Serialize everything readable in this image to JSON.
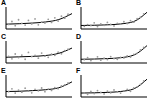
{
  "chart_data": [
    {
      "type": "scatter",
      "title": "A",
      "xlim": [
        0,
        100
      ],
      "ylim": [
        0,
        10
      ],
      "xticks": [
        0,
        25,
        50,
        75,
        100
      ],
      "yticks": [
        0,
        5,
        10
      ],
      "tick_labels": false,
      "grid": false,
      "series": [
        {
          "type": "scatter",
          "color": "#9a9a9a",
          "marker": "circle",
          "x": [
            4,
            9,
            14,
            19,
            24,
            29,
            34,
            39,
            44,
            49,
            54,
            59,
            64,
            69,
            74,
            79,
            84,
            89,
            94
          ],
          "values": [
            2.1,
            3.4,
            1.5,
            4.2,
            2.6,
            1.8,
            3.9,
            2.3,
            4.6,
            1.9,
            3.1,
            2.7,
            4.4,
            3.0,
            5.1,
            3.6,
            5.8,
            4.9,
            6.7
          ]
        },
        {
          "type": "line",
          "color": "#000000",
          "line_style": "solid",
          "x": [
            0,
            20,
            40,
            60,
            80,
            100
          ],
          "values": [
            2.2,
            2.4,
            2.7,
            3.2,
            4.3,
            7.0
          ]
        }
      ]
    },
    {
      "type": "scatter",
      "title": "B",
      "xlim": [
        0,
        100
      ],
      "ylim": [
        0,
        10
      ],
      "xticks": [
        0,
        25,
        50,
        75,
        100
      ],
      "yticks": [
        0,
        5,
        10
      ],
      "tick_labels": false,
      "grid": false,
      "series": [
        {
          "type": "scatter",
          "color": "#9a9a9a",
          "marker": "circle",
          "x": [
            5,
            10,
            15,
            20,
            25,
            30,
            35,
            40,
            45,
            50,
            55,
            60,
            65,
            70,
            75,
            80,
            85,
            90,
            95
          ],
          "values": [
            1.2,
            2.0,
            1.6,
            2.8,
            1.1,
            2.3,
            1.7,
            3.0,
            2.1,
            1.4,
            2.6,
            2.2,
            3.3,
            2.5,
            3.8,
            3.1,
            4.7,
            5.4,
            6.9
          ]
        },
        {
          "type": "line",
          "color": "#000000",
          "line_style": "solid",
          "x": [
            0,
            20,
            40,
            60,
            80,
            100
          ],
          "values": [
            1.6,
            1.7,
            1.9,
            2.3,
            3.4,
            7.6
          ]
        }
      ]
    },
    {
      "type": "scatter",
      "title": "C",
      "xlim": [
        0,
        100
      ],
      "ylim": [
        0,
        10
      ],
      "xticks": [
        0,
        25,
        50,
        75,
        100
      ],
      "yticks": [
        0,
        5,
        10
      ],
      "tick_labels": false,
      "grid": false,
      "series": [
        {
          "type": "scatter",
          "color": "#9a9a9a",
          "marker": "circle",
          "x": [
            4,
            9,
            14,
            19,
            24,
            29,
            34,
            39,
            44,
            49,
            54,
            59,
            64,
            69,
            74,
            79,
            84,
            89,
            94
          ],
          "values": [
            3.0,
            1.9,
            4.1,
            2.5,
            3.6,
            1.7,
            4.8,
            2.9,
            3.4,
            2.2,
            4.5,
            3.1,
            2.6,
            4.0,
            3.5,
            4.9,
            4.2,
            5.6,
            6.3
          ]
        },
        {
          "type": "line",
          "color": "#000000",
          "line_style": "solid",
          "x": [
            0,
            20,
            40,
            60,
            80,
            100
          ],
          "values": [
            2.6,
            2.8,
            3.0,
            3.4,
            4.4,
            6.8
          ]
        }
      ]
    },
    {
      "type": "scatter",
      "title": "D",
      "xlim": [
        0,
        100
      ],
      "ylim": [
        0,
        10
      ],
      "xticks": [
        0,
        25,
        50,
        75,
        100
      ],
      "yticks": [
        0,
        5,
        10
      ],
      "tick_labels": false,
      "grid": false,
      "series": [
        {
          "type": "scatter",
          "color": "#9a9a9a",
          "marker": "circle",
          "x": [
            5,
            10,
            15,
            20,
            25,
            30,
            35,
            40,
            45,
            50,
            55,
            60,
            65,
            70,
            75,
            80,
            85,
            90,
            95
          ],
          "values": [
            1.5,
            2.4,
            1.1,
            1.9,
            2.8,
            1.3,
            2.2,
            1.6,
            2.9,
            2.0,
            1.7,
            2.6,
            2.3,
            3.2,
            2.7,
            3.9,
            4.4,
            5.9,
            7.1
          ]
        },
        {
          "type": "line",
          "color": "#000000",
          "line_style": "solid",
          "x": [
            0,
            20,
            40,
            60,
            80,
            100
          ],
          "values": [
            1.7,
            1.8,
            2.0,
            2.4,
            3.6,
            7.9
          ]
        }
      ]
    },
    {
      "type": "scatter",
      "title": "E",
      "xlim": [
        0,
        100
      ],
      "ylim": [
        0,
        10
      ],
      "xticks": [
        0,
        25,
        50,
        75,
        100
      ],
      "yticks": [
        0,
        5,
        10
      ],
      "tick_labels": false,
      "grid": false,
      "series": [
        {
          "type": "scatter",
          "color": "#9a9a9a",
          "marker": "circle",
          "x": [
            4,
            9,
            14,
            19,
            24,
            29,
            34,
            39,
            44,
            49,
            54,
            59,
            64,
            69,
            74,
            79,
            84,
            89,
            94
          ],
          "values": [
            2.4,
            3.7,
            1.8,
            3.1,
            2.2,
            4.0,
            2.7,
            1.9,
            3.5,
            2.8,
            4.1,
            2.4,
            3.6,
            3.0,
            4.3,
            3.8,
            5.0,
            5.5,
            6.4
          ]
        },
        {
          "type": "line",
          "color": "#000000",
          "line_style": "solid",
          "x": [
            0,
            20,
            40,
            60,
            80,
            100
          ],
          "values": [
            2.5,
            2.6,
            2.9,
            3.3,
            4.2,
            6.9
          ]
        }
      ]
    },
    {
      "type": "scatter",
      "title": "F",
      "xlim": [
        0,
        100
      ],
      "ylim": [
        0,
        10
      ],
      "xticks": [
        0,
        25,
        50,
        75,
        100
      ],
      "yticks": [
        0,
        5,
        10
      ],
      "tick_labels": false,
      "grid": false,
      "series": [
        {
          "type": "scatter",
          "color": "#9a9a9a",
          "marker": "circle",
          "x": [
            5,
            10,
            15,
            20,
            25,
            30,
            35,
            40,
            45,
            50,
            55,
            60,
            65,
            70,
            75,
            80,
            85,
            90,
            95
          ],
          "values": [
            1.8,
            1.2,
            2.5,
            1.6,
            2.9,
            2.1,
            1.4,
            2.7,
            1.9,
            3.2,
            2.3,
            1.8,
            2.8,
            3.4,
            2.6,
            4.1,
            4.6,
            5.7,
            7.3
          ]
        },
        {
          "type": "line",
          "color": "#000000",
          "line_style": "solid",
          "x": [
            0,
            20,
            40,
            60,
            80,
            100
          ],
          "values": [
            1.8,
            1.9,
            2.1,
            2.5,
            3.7,
            8.1
          ]
        }
      ]
    }
  ]
}
